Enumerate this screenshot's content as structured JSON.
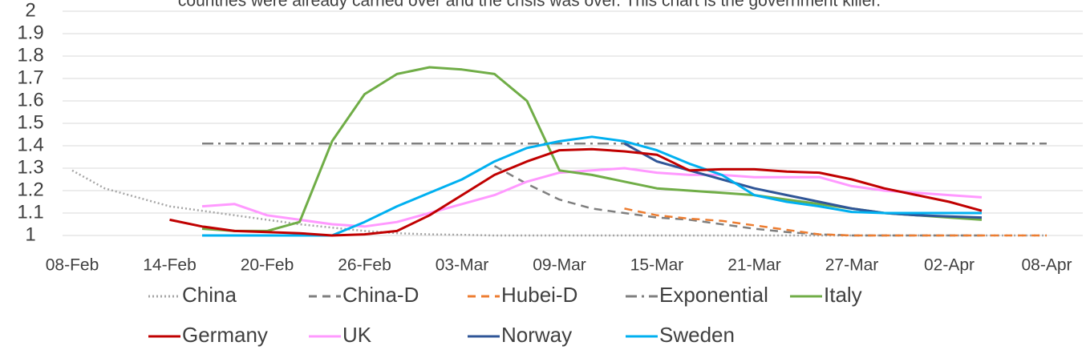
{
  "chart_data": {
    "type": "line",
    "title": "countries were already carried over and the crisis was over. This chart is the government killer.",
    "categories": [
      "08-Feb",
      null,
      null,
      "14-Feb",
      null,
      null,
      "20-Feb",
      null,
      null,
      "26-Feb",
      null,
      null,
      "03-Mar",
      null,
      null,
      "09-Mar",
      null,
      null,
      "15-Mar",
      null,
      null,
      "21-Mar",
      null,
      null,
      "27-Mar",
      null,
      null,
      "02-Apr",
      null,
      null,
      "08-Apr"
    ],
    "ylim": [
      1,
      2
    ],
    "yticks": [
      1,
      1.1,
      1.2,
      1.3,
      1.4,
      1.5,
      1.6,
      1.7,
      1.8,
      1.9,
      2
    ],
    "grid": true,
    "series": [
      {
        "name": "China",
        "color": "#a6a6a6",
        "dash": "dotted",
        "values": [
          1.29,
          1.21,
          1.17,
          1.13,
          1.11,
          1.09,
          1.07,
          1.05,
          1.035,
          1.02,
          1.01,
          1.005,
          1.003,
          1.0,
          1.0,
          1.0,
          1.0,
          1.0,
          1.0,
          1.0,
          1.0,
          1.0,
          1.0,
          1.0,
          1.0,
          1.0,
          1.0,
          1.0,
          1.0,
          1.0,
          1.0
        ]
      },
      {
        "name": "China-D",
        "color": "#7f7f7f",
        "dash": "dashed",
        "values": [
          null,
          null,
          null,
          null,
          null,
          null,
          null,
          null,
          null,
          null,
          null,
          null,
          null,
          1.31,
          1.23,
          1.16,
          1.12,
          1.1,
          1.08,
          1.07,
          1.05,
          1.03,
          1.015,
          1.005,
          1.0,
          1.0,
          1.0,
          1.0,
          1.0,
          null,
          null
        ]
      },
      {
        "name": "Hubei-D",
        "color": "#ed7d31",
        "dash": "dashed",
        "values": [
          null,
          null,
          null,
          null,
          null,
          null,
          null,
          null,
          null,
          null,
          null,
          null,
          null,
          null,
          null,
          null,
          null,
          1.12,
          1.09,
          1.075,
          1.065,
          1.045,
          1.025,
          1.005,
          1.0,
          1.0,
          1.0,
          1.0,
          1.0,
          1.0,
          1.0
        ]
      },
      {
        "name": "Exponential",
        "color": "#7f7f7f",
        "dash": "dashdot",
        "values": [
          null,
          null,
          null,
          null,
          1.41,
          1.41,
          1.41,
          1.41,
          1.41,
          1.41,
          1.41,
          1.41,
          1.41,
          1.41,
          1.41,
          1.41,
          1.41,
          1.41,
          1.41,
          1.41,
          1.41,
          1.41,
          1.41,
          1.41,
          1.41,
          1.41,
          1.41,
          1.41,
          1.41,
          1.41,
          1.41
        ]
      },
      {
        "name": "Italy",
        "color": "#70ad47",
        "dash": "solid",
        "values": [
          null,
          null,
          null,
          null,
          1.03,
          1.02,
          1.02,
          1.06,
          1.42,
          1.63,
          1.72,
          1.75,
          1.74,
          1.72,
          1.6,
          1.29,
          1.27,
          1.24,
          1.21,
          1.2,
          1.19,
          1.18,
          1.16,
          1.14,
          1.12,
          1.1,
          1.09,
          1.08,
          1.07,
          null,
          null
        ]
      },
      {
        "name": "Germany",
        "color": "#c00000",
        "dash": "solid",
        "values": [
          null,
          null,
          null,
          1.07,
          1.04,
          1.02,
          1.015,
          1.01,
          1.0,
          1.005,
          1.02,
          1.09,
          1.18,
          1.27,
          1.33,
          1.38,
          1.385,
          1.375,
          1.36,
          1.29,
          1.295,
          1.295,
          1.285,
          1.28,
          1.25,
          1.21,
          1.18,
          1.15,
          1.11,
          null,
          null
        ]
      },
      {
        "name": "UK",
        "color": "#ff99ff",
        "dash": "solid",
        "values": [
          null,
          null,
          null,
          null,
          1.13,
          1.14,
          1.09,
          1.07,
          1.05,
          1.04,
          1.06,
          1.1,
          1.14,
          1.18,
          1.24,
          1.28,
          1.29,
          1.3,
          1.28,
          1.27,
          1.27,
          1.26,
          1.26,
          1.26,
          1.22,
          1.2,
          1.19,
          1.18,
          1.17,
          null,
          null
        ]
      },
      {
        "name": "Norway",
        "color": "#2f5597",
        "dash": "solid",
        "values": [
          null,
          null,
          null,
          null,
          null,
          null,
          null,
          null,
          null,
          null,
          null,
          null,
          null,
          null,
          null,
          null,
          null,
          1.41,
          1.33,
          1.29,
          1.25,
          1.21,
          1.18,
          1.15,
          1.12,
          1.1,
          1.09,
          1.085,
          1.08,
          null,
          null
        ]
      },
      {
        "name": "Sweden",
        "color": "#00b0f0",
        "dash": "solid",
        "values": [
          null,
          null,
          null,
          null,
          1.0,
          1.0,
          1.0,
          1.0,
          1.0,
          1.06,
          1.13,
          1.19,
          1.25,
          1.33,
          1.39,
          1.42,
          1.44,
          1.42,
          1.38,
          1.32,
          1.27,
          1.18,
          1.15,
          1.13,
          1.105,
          1.1,
          1.1,
          1.1,
          1.1,
          null,
          null
        ]
      }
    ]
  }
}
